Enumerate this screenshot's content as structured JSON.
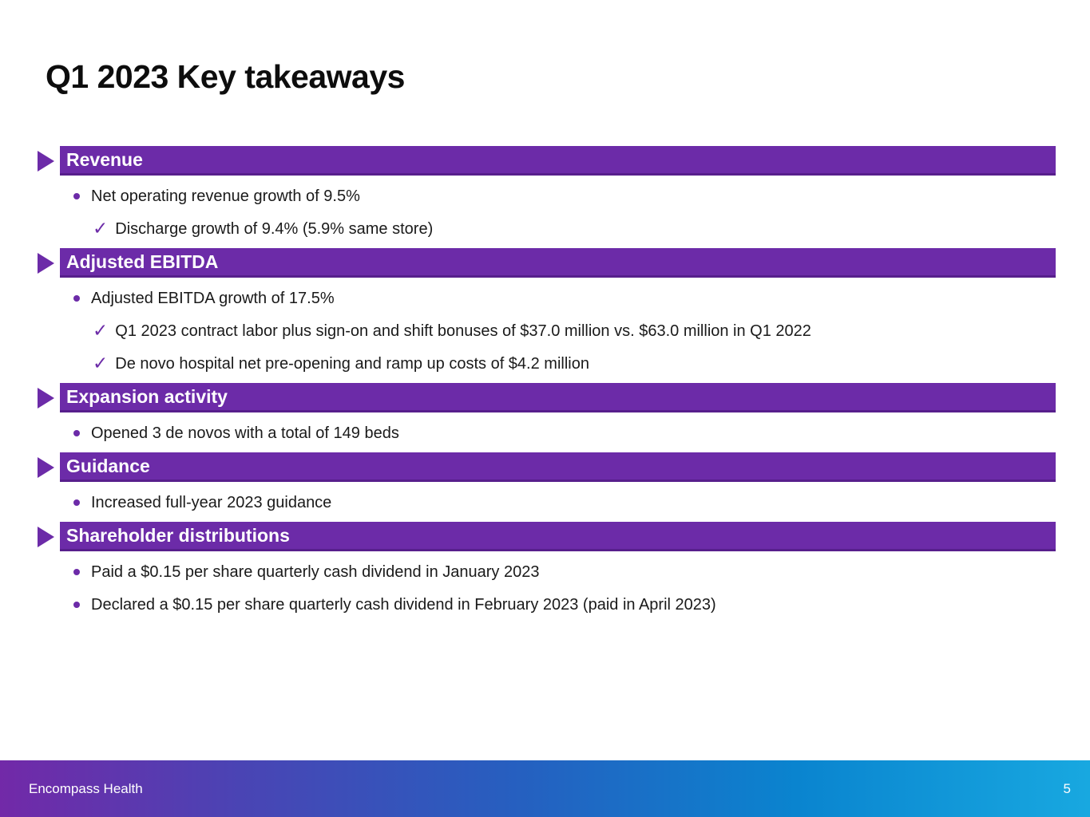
{
  "slide": {
    "title": "Q1 2023 Key takeaways",
    "footer_brand": "Encompass Health",
    "page_number": "5"
  },
  "colors": {
    "header_bar_purple": "#6C2BA8",
    "header_bar_purple_dark": "#571F8C",
    "body_text": "#1a1a1a",
    "footer_gradient": [
      "#7229A8",
      "#4A44B4",
      "#2560C0",
      "#0A84CF",
      "#18A8E0"
    ]
  },
  "icons": {
    "section_arrow": "triangle-right",
    "bullet": "dot",
    "check": "✓"
  },
  "sections": [
    {
      "header": "Revenue",
      "items": [
        {
          "level": 1,
          "text": "Net operating revenue growth of 9.5%"
        },
        {
          "level": 2,
          "text": "Discharge growth of 9.4% (5.9% same store)"
        }
      ]
    },
    {
      "header": "Adjusted EBITDA",
      "items": [
        {
          "level": 1,
          "text": "Adjusted EBITDA growth of 17.5%"
        },
        {
          "level": 2,
          "text": "Q1 2023 contract labor plus sign-on and shift bonuses of $37.0 million vs. $63.0 million in Q1 2022"
        },
        {
          "level": 2,
          "text": "De novo hospital net pre-opening and ramp up costs of $4.2 million"
        }
      ]
    },
    {
      "header": "Expansion activity",
      "items": [
        {
          "level": 1,
          "text": "Opened 3 de novos with a total of 149 beds"
        }
      ]
    },
    {
      "header": "Guidance",
      "items": [
        {
          "level": 1,
          "text": "Increased full-year 2023 guidance"
        }
      ]
    },
    {
      "header": "Shareholder distributions",
      "items": [
        {
          "level": 1,
          "text": "Paid a $0.15 per share quarterly cash dividend in January 2023"
        },
        {
          "level": 1,
          "text": "Declared a $0.15 per share quarterly cash dividend in February 2023 (paid in April 2023)"
        }
      ]
    }
  ]
}
